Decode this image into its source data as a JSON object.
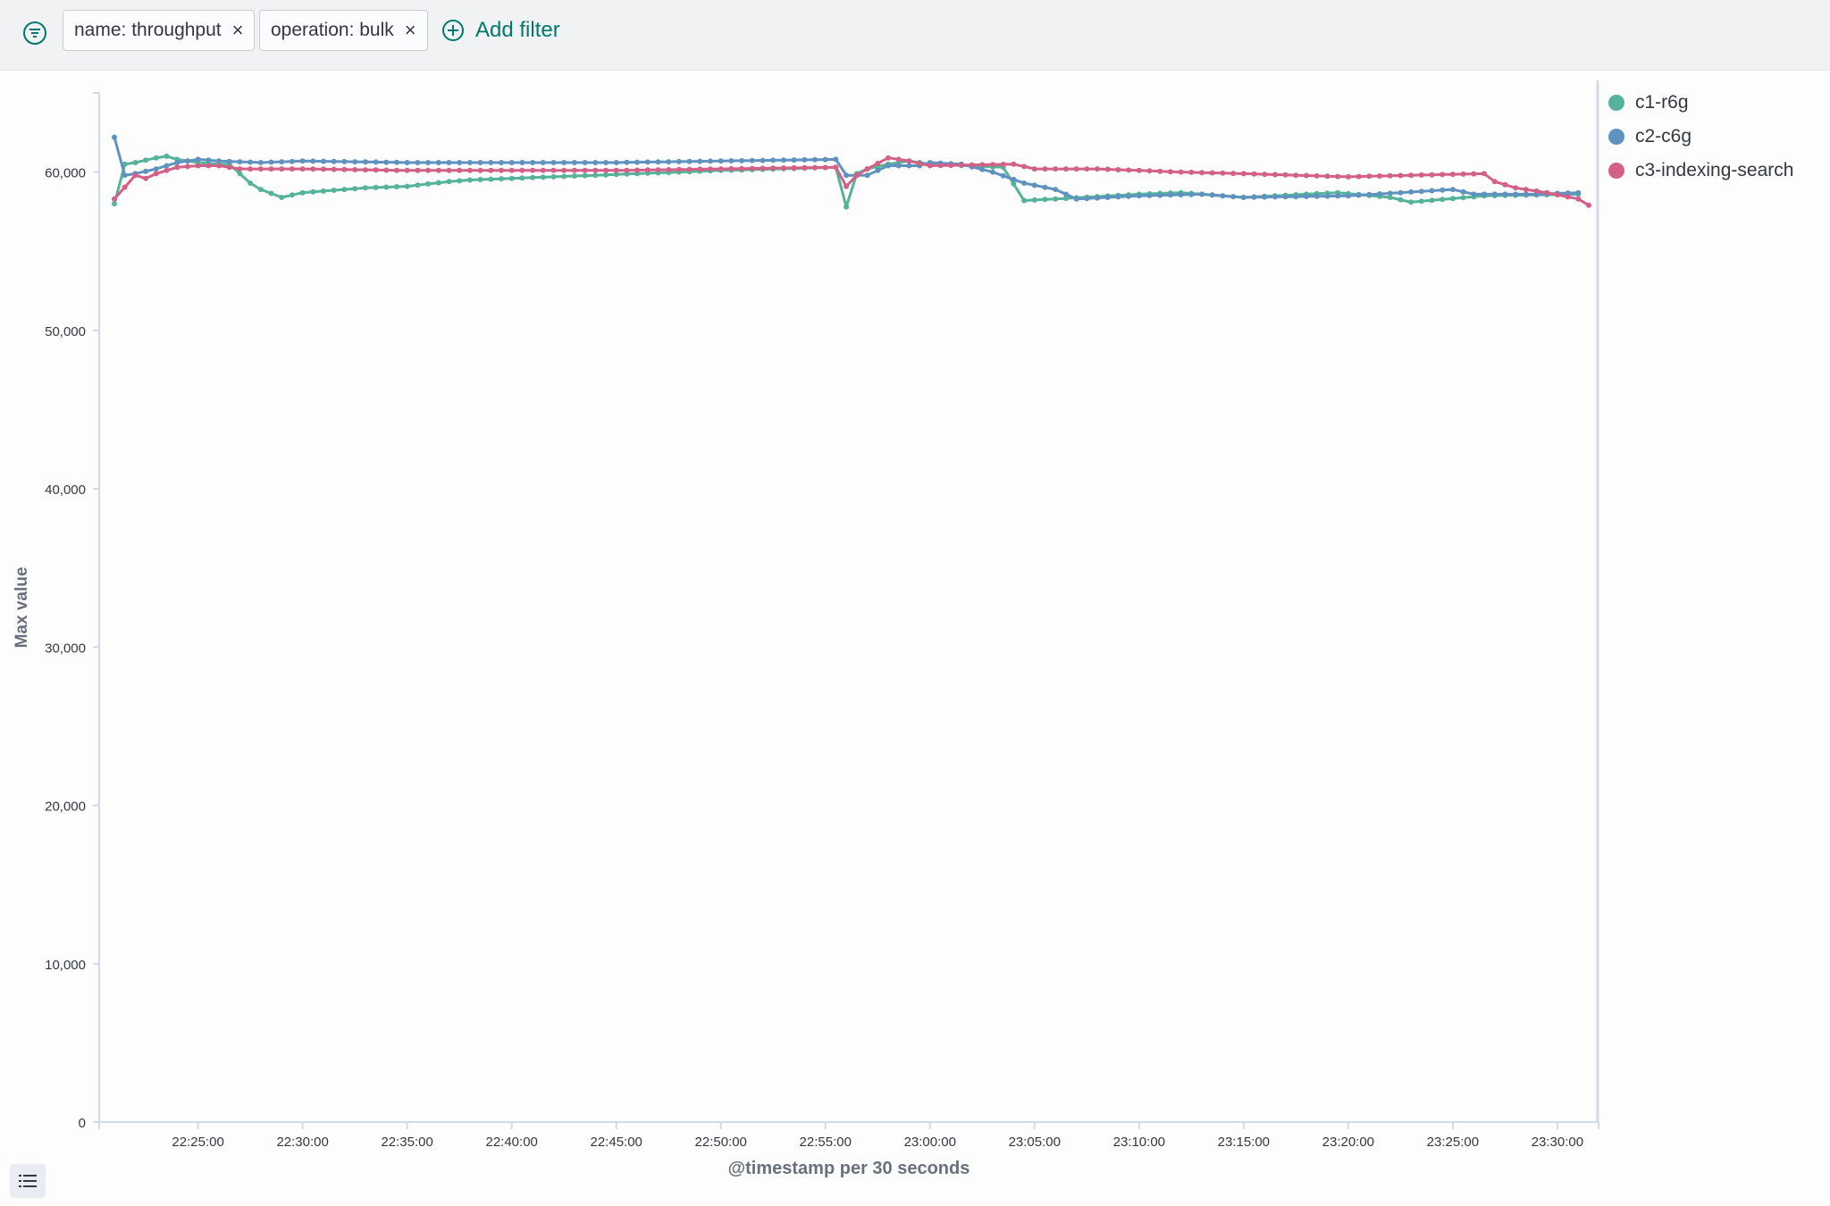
{
  "filters": [
    {
      "label": "name: throughput"
    },
    {
      "label": "operation: bulk"
    }
  ],
  "add_filter_label": "Add filter",
  "legend_toggle_icon": "list-icon",
  "filter_menu_icon": "filter-menu-icon",
  "colors": {
    "c1-r6g": "#54b399",
    "c2-c6g": "#6092c0",
    "c3-indexing-search": "#d36086"
  },
  "chart_data": {
    "type": "line",
    "xlabel": "@timestamp per 30 seconds",
    "ylabel": "Max value",
    "ylim": [
      0,
      65000
    ],
    "yticks": [
      0,
      10000,
      20000,
      30000,
      40000,
      50000,
      60000
    ],
    "ytick_labels": [
      "0",
      "10,000",
      "20,000",
      "30,000",
      "40,000",
      "50,000",
      "60,000"
    ],
    "xlim": [
      "22:21:00",
      "23:31:30"
    ],
    "xticks": [
      "22:25:00",
      "22:30:00",
      "22:35:00",
      "22:40:00",
      "22:45:00",
      "22:50:00",
      "22:55:00",
      "23:00:00",
      "23:05:00",
      "23:10:00",
      "23:15:00",
      "23:20:00",
      "23:25:00",
      "23:30:00"
    ],
    "start": "22:21:00",
    "interval": "30s",
    "legend_position": "right",
    "grid": false,
    "series": [
      {
        "name": "c1-r6g",
        "color": "#54b399",
        "anchors": [
          [
            "22:21:00",
            58000
          ],
          [
            "22:21:30",
            60500
          ],
          [
            "22:22:00",
            60600
          ],
          [
            "22:23:00",
            60900
          ],
          [
            "22:23:30",
            61000
          ],
          [
            "22:24:00",
            60800
          ],
          [
            "22:25:00",
            60600
          ],
          [
            "22:26:00",
            60500
          ],
          [
            "22:26:30",
            60500
          ],
          [
            "22:27:30",
            59300
          ],
          [
            "22:28:00",
            58900
          ],
          [
            "22:29:00",
            58400
          ],
          [
            "22:30:00",
            58700
          ],
          [
            "22:32:00",
            58900
          ],
          [
            "22:33:00",
            59000
          ],
          [
            "22:35:00",
            59100
          ],
          [
            "22:37:00",
            59400
          ],
          [
            "22:38:00",
            59500
          ],
          [
            "22:42:00",
            59700
          ],
          [
            "22:46:00",
            59900
          ],
          [
            "22:50:00",
            60100
          ],
          [
            "22:55:30",
            60300
          ],
          [
            "22:56:00",
            57800
          ],
          [
            "22:56:30",
            59900
          ],
          [
            "22:57:00",
            60200
          ],
          [
            "22:58:00",
            60500
          ],
          [
            "22:59:00",
            60700
          ],
          [
            "23:00:00",
            60500
          ],
          [
            "23:03:30",
            60300
          ],
          [
            "23:04:30",
            58200
          ],
          [
            "23:06:00",
            58300
          ],
          [
            "23:10:00",
            58600
          ],
          [
            "23:12:00",
            58700
          ],
          [
            "23:15:00",
            58400
          ],
          [
            "23:19:30",
            58700
          ],
          [
            "23:22:00",
            58400
          ],
          [
            "23:23:00",
            58100
          ],
          [
            "23:26:30",
            58500
          ],
          [
            "23:31:00",
            58600
          ]
        ]
      },
      {
        "name": "c2-c6g",
        "color": "#6092c0",
        "anchors": [
          [
            "22:21:00",
            62200
          ],
          [
            "22:21:30",
            59800
          ],
          [
            "22:22:00",
            59900
          ],
          [
            "22:23:00",
            60200
          ],
          [
            "22:24:00",
            60600
          ],
          [
            "22:25:00",
            60800
          ],
          [
            "22:26:00",
            60700
          ],
          [
            "22:28:00",
            60600
          ],
          [
            "22:30:00",
            60700
          ],
          [
            "22:35:00",
            60600
          ],
          [
            "22:40:00",
            60600
          ],
          [
            "22:45:00",
            60600
          ],
          [
            "22:50:00",
            60700
          ],
          [
            "22:55:30",
            60800
          ],
          [
            "22:56:00",
            59800
          ],
          [
            "22:57:00",
            59800
          ],
          [
            "22:58:00",
            60400
          ],
          [
            "22:59:30",
            60400
          ],
          [
            "23:00:00",
            60600
          ],
          [
            "23:01:30",
            60500
          ],
          [
            "23:03:00",
            60000
          ],
          [
            "23:04:30",
            59300
          ],
          [
            "23:06:00",
            58900
          ],
          [
            "23:07:00",
            58300
          ],
          [
            "23:10:00",
            58500
          ],
          [
            "23:13:00",
            58600
          ],
          [
            "23:15:00",
            58400
          ],
          [
            "23:20:00",
            58500
          ],
          [
            "23:25:00",
            58900
          ],
          [
            "23:26:00",
            58600
          ],
          [
            "23:29:00",
            58600
          ],
          [
            "23:31:00",
            58700
          ]
        ]
      },
      {
        "name": "c3-indexing-search",
        "color": "#d36086",
        "anchors": [
          [
            "22:21:00",
            58300
          ],
          [
            "22:22:00",
            59800
          ],
          [
            "22:22:30",
            59600
          ],
          [
            "22:23:00",
            59900
          ],
          [
            "22:24:00",
            60300
          ],
          [
            "22:25:00",
            60400
          ],
          [
            "22:26:00",
            60400
          ],
          [
            "22:27:00",
            60200
          ],
          [
            "22:30:00",
            60200
          ],
          [
            "22:35:00",
            60100
          ],
          [
            "22:40:00",
            60100
          ],
          [
            "22:45:00",
            60100
          ],
          [
            "22:50:00",
            60200
          ],
          [
            "22:55:30",
            60300
          ],
          [
            "22:56:00",
            59100
          ],
          [
            "22:56:30",
            59800
          ],
          [
            "22:57:00",
            60200
          ],
          [
            "22:58:00",
            60900
          ],
          [
            "22:59:00",
            60700
          ],
          [
            "23:00:00",
            60400
          ],
          [
            "23:04:00",
            60500
          ],
          [
            "23:05:00",
            60200
          ],
          [
            "23:08:00",
            60200
          ],
          [
            "23:12:00",
            60000
          ],
          [
            "23:15:00",
            59900
          ],
          [
            "23:20:00",
            59700
          ],
          [
            "23:23:00",
            59800
          ],
          [
            "23:26:30",
            59900
          ],
          [
            "23:27:00",
            59400
          ],
          [
            "23:28:00",
            59000
          ],
          [
            "23:29:30",
            58700
          ],
          [
            "23:31:00",
            58300
          ],
          [
            "23:31:30",
            57900
          ]
        ]
      }
    ]
  }
}
